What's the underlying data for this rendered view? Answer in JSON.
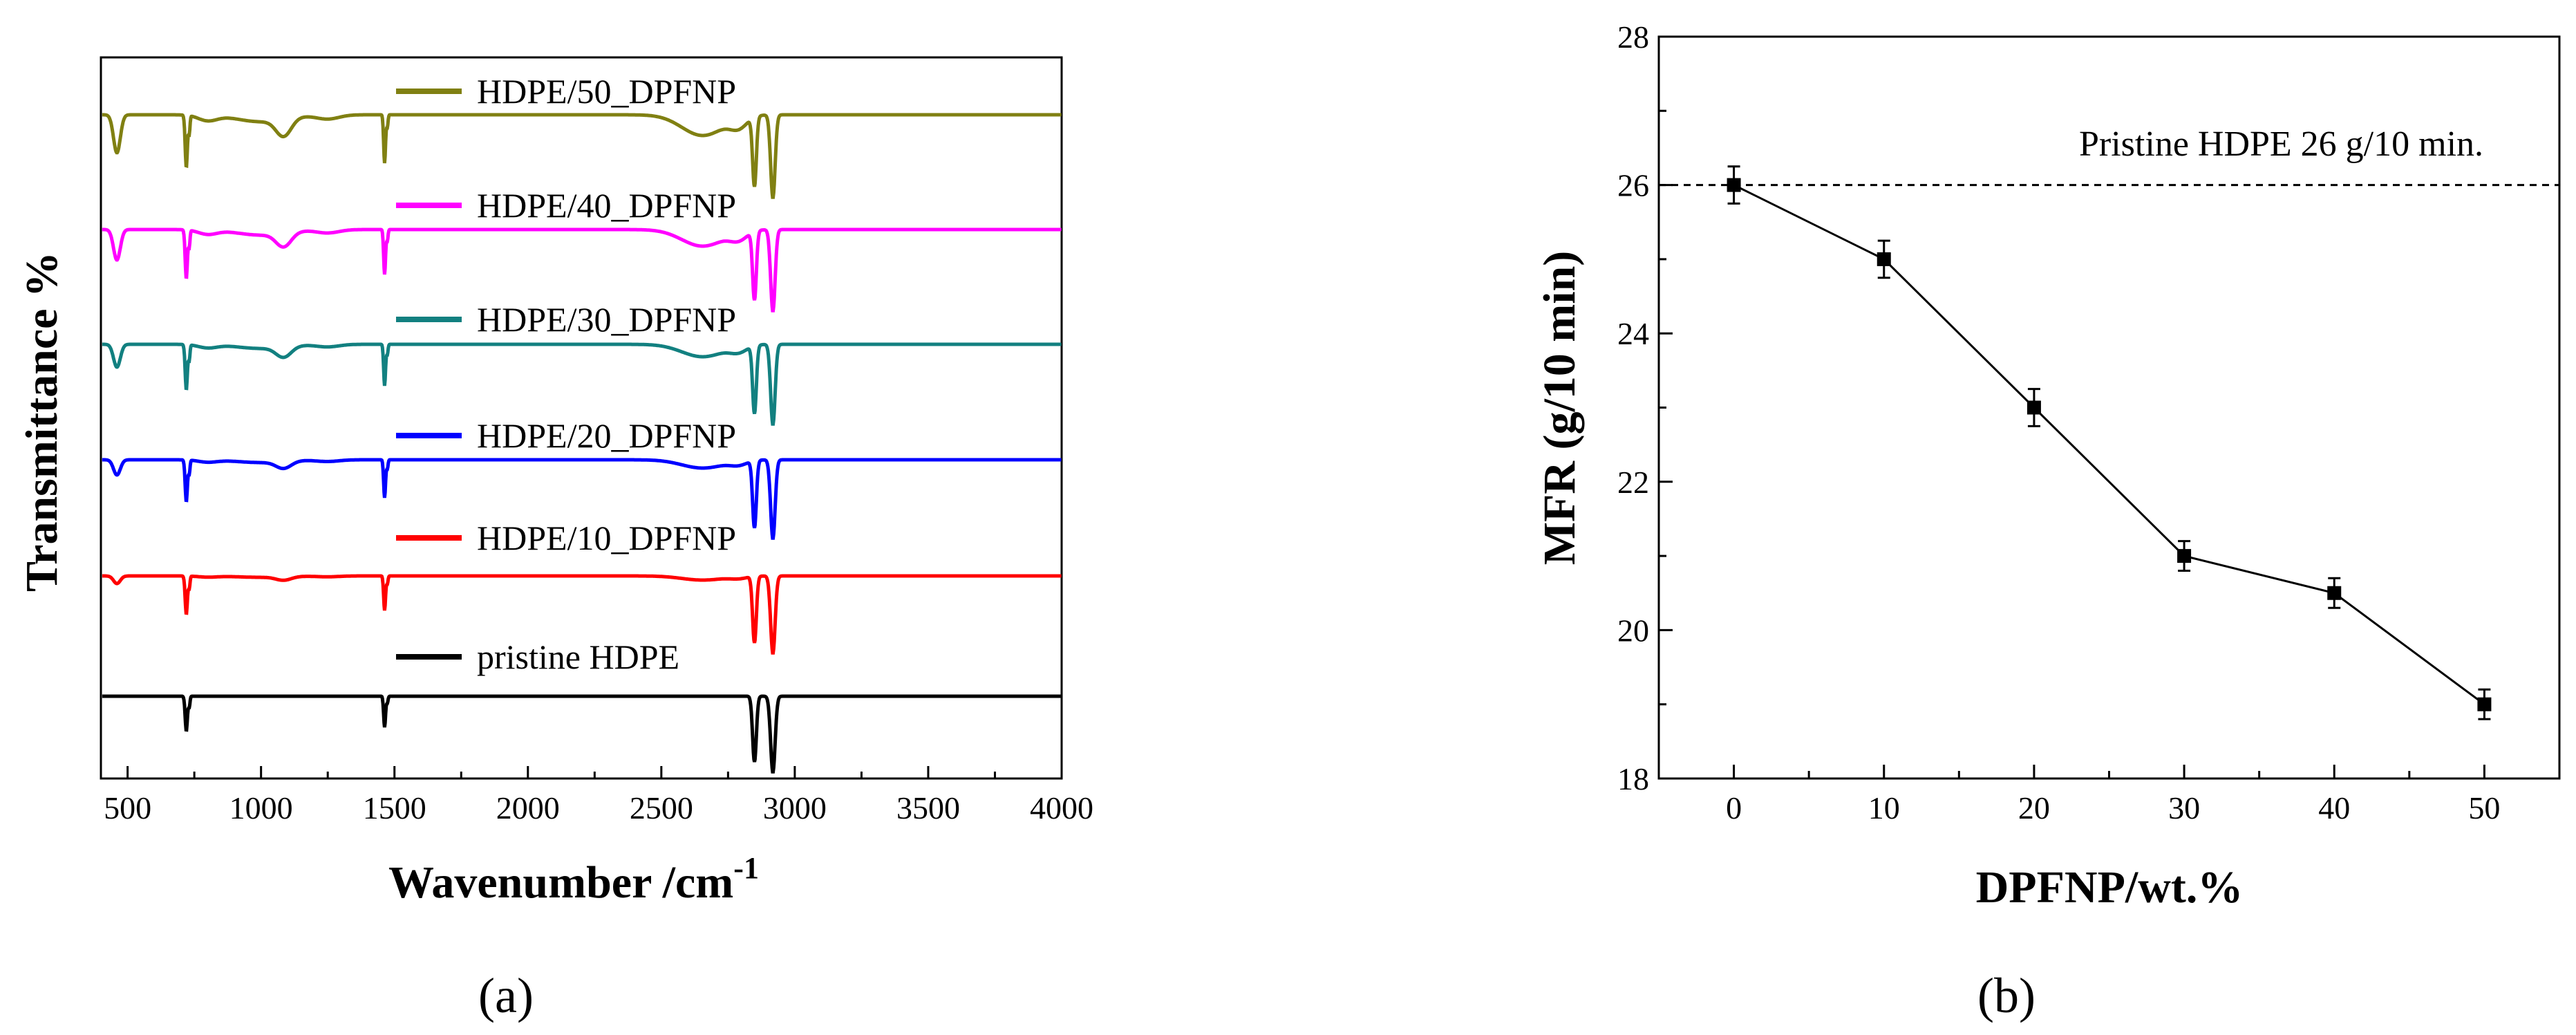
{
  "chart_data": [
    {
      "panel": "(a)",
      "type": "line",
      "title": "",
      "xlabel": "Wavenumber /cm",
      "xlabel_superscript": "-1",
      "ylabel": "Transmittance %",
      "xlim": [
        400,
        4000
      ],
      "xticks": [
        500,
        1000,
        1500,
        2000,
        2500,
        3000,
        3500,
        4000
      ],
      "y_ticks_shown": false,
      "peaks_cm1": [
        470,
        720,
        1080,
        1470,
        2850,
        2918
      ],
      "series": [
        {
          "name": "pristine HDPE",
          "color": "#000000",
          "offset": 0
        },
        {
          "name": "HDPE/10_DPFNP",
          "color": "#ff0000",
          "offset": 1
        },
        {
          "name": "HDPE/20_DPFNP",
          "color": "#0000ff",
          "offset": 2
        },
        {
          "name": "HDPE/30_DPFNP",
          "color": "#128080",
          "offset": 3
        },
        {
          "name": "HDPE/40_DPFNP",
          "color": "#ff00ff",
          "offset": 4
        },
        {
          "name": "HDPE/50_DPFNP",
          "color": "#808012",
          "offset": 5
        }
      ]
    },
    {
      "panel": "(b)",
      "type": "scatter",
      "title": "",
      "xlabel": "DPFNP/wt.%",
      "ylabel": "MFR (g/10 min)",
      "xlim": [
        -5,
        55
      ],
      "ylim": [
        18,
        28
      ],
      "xticks": [
        0,
        10,
        20,
        30,
        40,
        50
      ],
      "yticks": [
        18,
        20,
        22,
        24,
        26,
        28
      ],
      "x": [
        0,
        10,
        20,
        30,
        40,
        50
      ],
      "y": [
        26,
        25,
        23,
        21,
        20.5,
        19
      ],
      "yerr": [
        0.25,
        0.25,
        0.25,
        0.2,
        0.2,
        0.2
      ],
      "reference": {
        "value": 26,
        "label": "Pristine HDPE 26 g/10 min."
      }
    }
  ],
  "captions": {
    "a": "(a)",
    "b": "(b)"
  }
}
